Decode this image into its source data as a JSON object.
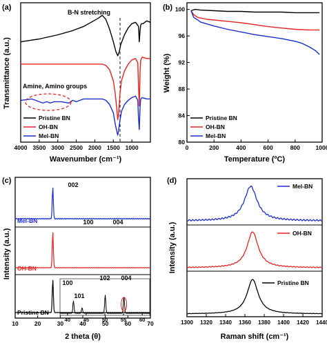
{
  "chart_data": [
    {
      "panel": "(a)",
      "type": "line",
      "xlabel": "Wavenumber (cm⁻¹)",
      "ylabel": "Transmittance (a.u.)",
      "xlim": [
        4000,
        500
      ],
      "xticks": [
        4000,
        3500,
        3000,
        2500,
        2000,
        1500,
        1000
      ],
      "annotations": [
        "B-N stretching",
        "Amine, Amino groups"
      ],
      "legend_position": "bottom-left",
      "series": [
        {
          "name": "Pristine BN",
          "color": "#000000",
          "x": [
            4000,
            3500,
            3000,
            2600,
            2300,
            2100,
            1900,
            1800,
            1700,
            1600,
            1500,
            1430,
            1380,
            1340,
            1300,
            1200,
            1100,
            1000,
            900,
            820,
            800,
            780,
            760,
            740,
            700,
            600,
            500
          ],
          "y": [
            0.72,
            0.74,
            0.77,
            0.8,
            0.83,
            0.86,
            0.89,
            0.91,
            0.88,
            0.81,
            0.72,
            0.65,
            0.62,
            0.65,
            0.7,
            0.77,
            0.82,
            0.85,
            0.86,
            0.83,
            0.72,
            0.8,
            0.84,
            0.85,
            0.85,
            0.87,
            0.86
          ]
        },
        {
          "name": "OH-BN",
          "color": "#e8201f",
          "x": [
            4000,
            3500,
            3000,
            2500,
            2000,
            1800,
            1700,
            1600,
            1500,
            1450,
            1400,
            1380,
            1360,
            1320,
            1280,
            1200,
            1100,
            1000,
            900,
            840,
            820,
            800,
            780,
            760,
            720,
            600,
            500
          ],
          "y": [
            0.56,
            0.56,
            0.56,
            0.56,
            0.56,
            0.56,
            0.55,
            0.52,
            0.44,
            0.35,
            0.22,
            0.16,
            0.2,
            0.35,
            0.44,
            0.51,
            0.56,
            0.59,
            0.6,
            0.57,
            0.4,
            0.26,
            0.5,
            0.59,
            0.61,
            0.6,
            0.6
          ]
        },
        {
          "name": "Mel-BN",
          "color": "#1a2bd1",
          "x": [
            4000,
            3700,
            3500,
            3400,
            3300,
            3200,
            3100,
            2900,
            2700,
            2600,
            2500,
            2400,
            2300,
            2000,
            1800,
            1700,
            1600,
            1500,
            1450,
            1400,
            1380,
            1360,
            1320,
            1280,
            1200,
            1100,
            1000,
            900,
            840,
            820,
            800,
            780,
            760,
            720,
            600,
            500
          ],
          "y": [
            0.3,
            0.31,
            0.29,
            0.28,
            0.29,
            0.28,
            0.29,
            0.29,
            0.28,
            0.3,
            0.29,
            0.3,
            0.31,
            0.31,
            0.31,
            0.3,
            0.27,
            0.21,
            0.13,
            0.07,
            0.05,
            0.08,
            0.16,
            0.22,
            0.27,
            0.3,
            0.32,
            0.33,
            0.3,
            0.17,
            0.09,
            0.25,
            0.31,
            0.32,
            0.31,
            0.31
          ]
        }
      ]
    },
    {
      "panel": "(b)",
      "type": "line",
      "xlabel": "Temperature (ºC)",
      "ylabel": "Weight (%)",
      "xlim": [
        0,
        1000
      ],
      "ylim": [
        80,
        101
      ],
      "xticks": [
        0,
        200,
        400,
        600,
        800,
        1000
      ],
      "yticks": [
        80,
        84,
        88,
        92,
        96,
        100
      ],
      "legend_position": "bottom-left",
      "series": [
        {
          "name": "Pristine BN",
          "color": "#000000",
          "x": [
            30,
            60,
            100,
            200,
            300,
            400,
            500,
            600,
            700,
            800,
            900,
            980
          ],
          "y": [
            99.8,
            100.0,
            99.9,
            99.8,
            99.7,
            99.7,
            99.6,
            99.6,
            99.6,
            99.5,
            99.5,
            99.5
          ]
        },
        {
          "name": "OH-BN",
          "color": "#e8201f",
          "x": [
            30,
            50,
            80,
            100,
            150,
            200,
            300,
            400,
            500,
            600,
            700,
            800,
            900,
            980
          ],
          "y": [
            99.8,
            99.2,
            98.8,
            98.7,
            98.5,
            98.4,
            98.2,
            98.0,
            97.7,
            97.4,
            97.2,
            97.0,
            96.9,
            96.9
          ]
        },
        {
          "name": "Mel-BN",
          "color": "#1a2bd1",
          "x": [
            30,
            50,
            80,
            100,
            150,
            200,
            300,
            400,
            500,
            600,
            700,
            800,
            850,
            900,
            950,
            980
          ],
          "y": [
            99.8,
            98.8,
            98.4,
            98.1,
            97.8,
            97.5,
            97.0,
            96.6,
            96.2,
            95.9,
            95.6,
            95.2,
            94.9,
            94.4,
            93.8,
            93.2
          ]
        }
      ]
    },
    {
      "panel": "(c)",
      "type": "line",
      "xlabel": "2 theta (θ)",
      "ylabel": "Intensity (a.u.)",
      "xlim": [
        10,
        70
      ],
      "xticks": [
        10,
        20,
        30,
        40,
        50,
        60,
        70
      ],
      "inset_xticks": [
        40,
        45,
        50,
        55,
        60
      ],
      "peak_labels": [
        "002",
        "100",
        "004",
        "100",
        "101",
        "102",
        "004"
      ],
      "series": [
        {
          "name": "Mel-BN",
          "color": "#1a2bd1",
          "peak": 26.7
        },
        {
          "name": "OH-BN",
          "color": "#e8201f",
          "peak": 26.7
        },
        {
          "name": "Pristine BN",
          "color": "#000000",
          "peak": 26.7
        }
      ]
    },
    {
      "panel": "(d)",
      "type": "line",
      "xlabel": "Raman shift (cm⁻¹)",
      "ylabel": "Intensity (a.u.)",
      "xlim": [
        1300,
        1440
      ],
      "xticks": [
        1300,
        1320,
        1340,
        1360,
        1380,
        1400,
        1420,
        1440
      ],
      "series": [
        {
          "name": "Mel-BN",
          "color": "#1a2bd1",
          "peak": 1366
        },
        {
          "name": "OH-BN",
          "color": "#e8201f",
          "peak": 1368
        },
        {
          "name": "Pristine BN",
          "color": "#000000",
          "peak": 1368
        }
      ]
    }
  ]
}
